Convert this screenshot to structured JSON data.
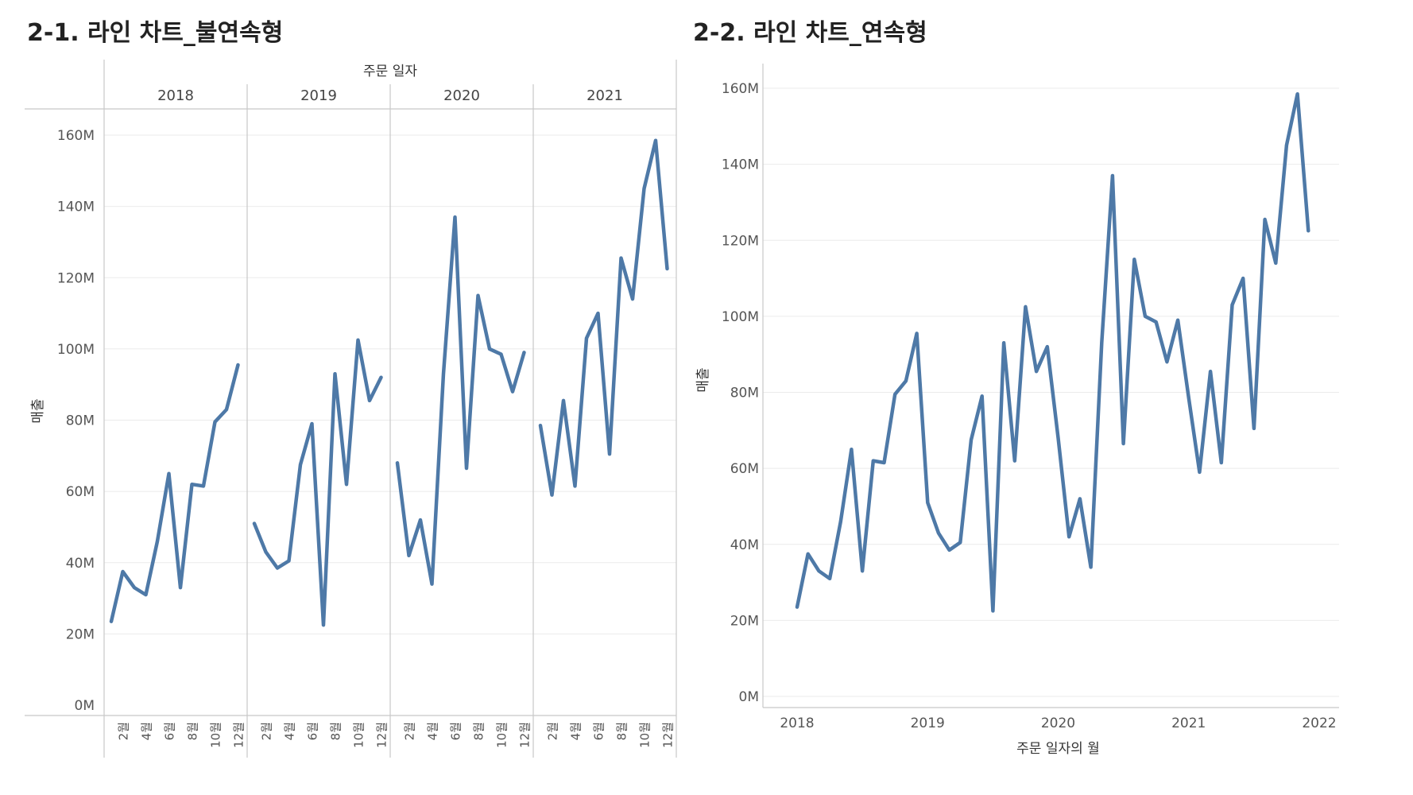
{
  "titles": {
    "left": "2-1. 라인 차트_불연속형",
    "right": "2-2. 라인 차트_연속형"
  },
  "colors": {
    "line": "#4e79a7",
    "grid": "#ebebeb",
    "axis": "#c8c8c8"
  },
  "chart_data": [
    {
      "type": "line",
      "title": "2-1. 라인 차트_불연속형",
      "column_header": "주문 일자",
      "panels": [
        "2018",
        "2019",
        "2020",
        "2021"
      ],
      "x_tick_labels": [
        "2월",
        "4월",
        "6월",
        "8월",
        "10월",
        "12월"
      ],
      "ylabel": "매출",
      "y_ticks": [
        "0M",
        "20M",
        "40M",
        "60M",
        "80M",
        "100M",
        "120M",
        "140M",
        "160M"
      ],
      "ylim": [
        0,
        160
      ],
      "y_unit": "M",
      "grid": true,
      "series": [
        {
          "panel": "2018",
          "months": [
            1,
            2,
            3,
            4,
            5,
            6,
            7,
            8,
            9,
            10,
            11,
            12
          ],
          "values": [
            23.5,
            37.5,
            33,
            31,
            46,
            65,
            33,
            62,
            61.5,
            79.5,
            83,
            95.5
          ]
        },
        {
          "panel": "2019",
          "months": [
            1,
            2,
            3,
            4,
            5,
            6,
            7,
            8,
            9,
            10,
            11,
            12
          ],
          "values": [
            51,
            43,
            38.5,
            40.5,
            67.5,
            79,
            22.5,
            93,
            62,
            102.5,
            85.5,
            92
          ]
        },
        {
          "panel": "2020",
          "months": [
            1,
            2,
            3,
            4,
            5,
            6,
            7,
            8,
            9,
            10,
            11,
            12
          ],
          "values": [
            68,
            42,
            52,
            34,
            93,
            137,
            66.5,
            115,
            100,
            98.5,
            88,
            99
          ]
        },
        {
          "panel": "2021",
          "months": [
            1,
            2,
            3,
            4,
            5,
            6,
            7,
            8,
            9,
            10,
            11,
            12
          ],
          "values": [
            78.5,
            59,
            85.5,
            61.5,
            103,
            110,
            70.5,
            125.5,
            114,
            145,
            158.5,
            122.5
          ]
        }
      ]
    },
    {
      "type": "line",
      "title": "2-2. 라인 차트_연속형",
      "xlabel": "주문 일자의 월",
      "ylabel": "매출",
      "x_ticks": [
        "2018",
        "2019",
        "2020",
        "2021",
        "2022"
      ],
      "y_ticks": [
        "0M",
        "20M",
        "40M",
        "60M",
        "80M",
        "100M",
        "120M",
        "140M",
        "160M"
      ],
      "ylim": [
        0,
        160
      ],
      "y_unit": "M",
      "grid": true,
      "series": [
        {
          "start": "2018-01",
          "values": [
            23.5,
            37.5,
            33,
            31,
            46,
            65,
            33,
            62,
            61.5,
            79.5,
            83,
            95.5,
            51,
            43,
            38.5,
            40.5,
            67.5,
            79,
            22.5,
            93,
            62,
            102.5,
            85.5,
            92,
            68,
            42,
            52,
            34,
            93,
            137,
            66.5,
            115,
            100,
            98.5,
            88,
            99,
            78.5,
            59,
            85.5,
            61.5,
            103,
            110,
            70.5,
            125.5,
            114,
            145,
            158.5,
            122.5
          ]
        }
      ]
    }
  ]
}
